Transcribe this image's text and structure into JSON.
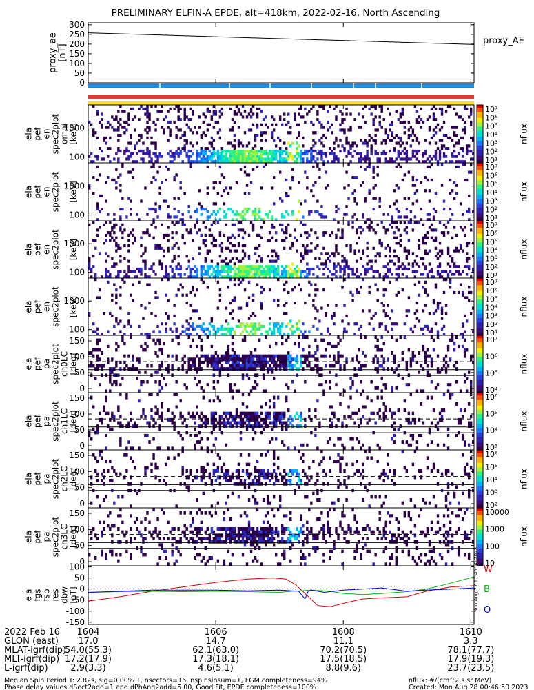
{
  "title": "PRELIMINARY ELFIN-A EPDE, alt=418km, 2022-02-16, North Ascending",
  "chart_data": {
    "type": "heatmap",
    "panels": [
      {
        "ylabel": [
          "proxy_ae",
          "[nT]"
        ],
        "yticks": [
          "300",
          "250",
          "200",
          "150",
          "100",
          "50",
          "0"
        ],
        "ylim": [
          0,
          310
        ],
        "legend": "proxy_AE",
        "series": [
          {
            "name": "proxy_AE",
            "x": [
              1604,
              1610.05
            ],
            "y": [
              258,
              198
            ]
          }
        ]
      },
      {
        "ylabel": [
          "ela",
          "pef",
          "en",
          "spec2plot",
          "omni",
          "[keV]"
        ],
        "yticks": [
          "1000",
          "100"
        ],
        "cbar": "nflux",
        "cbar_ticks": [
          "10⁷",
          "10⁶",
          "10⁵",
          "10⁴",
          "10³",
          "10²",
          "10¹"
        ]
      },
      {
        "ylabel": [
          "ela",
          "pef",
          "en",
          "spec2plot",
          "",
          "[keV]"
        ],
        "yticks": [
          "1000",
          "100"
        ],
        "cbar": "nflux",
        "cbar_ticks": [
          "10⁷",
          "10⁶",
          "10⁵",
          "10⁴",
          "10³",
          "10²",
          "10¹"
        ]
      },
      {
        "ylabel": [
          "ela",
          "pef",
          "en",
          "spec2plot",
          "",
          "[keV]"
        ],
        "yticks": [
          "1000",
          "100"
        ],
        "cbar": "nflux",
        "cbar_ticks": [
          "10⁷",
          "10⁶",
          "10⁵",
          "10⁴",
          "10³",
          "10²",
          "10¹"
        ]
      },
      {
        "ylabel": [
          "ela",
          "pef",
          "en",
          "spec2plot",
          "",
          "[keV]"
        ],
        "yticks": [
          "1000",
          "100"
        ],
        "cbar": "nflux",
        "cbar_ticks": [
          "10⁷",
          "10⁶",
          "10⁵",
          "10⁴",
          "10³",
          "10²",
          "10¹"
        ]
      },
      {
        "ylabel": [
          "ela",
          "pef",
          "pa",
          "spec2plot",
          "ch0LC",
          "[deg]"
        ],
        "yticks": [
          "150",
          "100",
          "50",
          "0"
        ],
        "cbar": "nflux",
        "cbar_ticks": [
          "10⁷",
          "10⁶",
          "10⁵",
          "10⁴"
        ]
      },
      {
        "ylabel": [
          "ela",
          "pef",
          "pa",
          "spec2plot",
          "ch1LC",
          "[deg]"
        ],
        "yticks": [
          "150",
          "100",
          "50",
          "0"
        ],
        "cbar": "nflux",
        "cbar_ticks": [
          "10⁶",
          "10⁵",
          "10⁴",
          "10³"
        ]
      },
      {
        "ylabel": [
          "ela",
          "pef",
          "pa",
          "spec2plot",
          "ch2LC",
          "[deg]"
        ],
        "yticks": [
          "150",
          "100",
          "50",
          "0"
        ],
        "cbar": "nflux",
        "cbar_ticks": [
          "10⁶",
          "10⁵",
          "10⁴",
          "10³",
          "10²"
        ]
      },
      {
        "ylabel": [
          "ela",
          "pef",
          "pa",
          "spec2plot",
          "ch3LC",
          "[deg]"
        ],
        "yticks": [
          "150",
          "100",
          "50",
          "0"
        ],
        "cbar": "nflux",
        "cbar_ticks": [
          "10000",
          "1000",
          "100",
          "10"
        ]
      },
      {
        "ylabel": [
          "ela",
          "fgs",
          "fsp",
          "res",
          "dbw",
          "[nT]"
        ],
        "yticks": [
          "100",
          "50",
          "0",
          "-50",
          "-100",
          "-150"
        ],
        "ylim": [
          -160,
          105
        ],
        "legend": [
          "W",
          "B",
          "O"
        ],
        "series": [
          {
            "name": "W",
            "color": "#dd0000",
            "x": [
              1604,
              1604.5,
              1605,
              1605.5,
              1606,
              1606.5,
              1606.9,
              1607.1,
              1607.25,
              1607.4,
              1607.6,
              1607.8,
              1608,
              1608.3,
              1608.6,
              1609,
              1609.3,
              1609.7,
              1610.05
            ],
            "y": [
              -55,
              -35,
              -10,
              10,
              30,
              45,
              50,
              45,
              20,
              -20,
              -75,
              -80,
              -65,
              -45,
              -40,
              -35,
              -10,
              10,
              15
            ]
          },
          {
            "name": "B",
            "color": "#00bb00",
            "x": [
              1604,
              1604.5,
              1605,
              1605.5,
              1606,
              1606.5,
              1607,
              1607.2,
              1607.5,
              1607.8,
              1608,
              1608.3,
              1608.6,
              1609,
              1609.3,
              1609.6,
              1610.05
            ],
            "y": [
              -15,
              -12,
              -10,
              -12,
              -10,
              -12,
              -15,
              -10,
              -5,
              -10,
              -20,
              -25,
              -20,
              -12,
              0,
              20,
              55
            ]
          },
          {
            "name": "O",
            "color": "#0000dd",
            "x": [
              1604,
              1604.5,
              1605,
              1605.5,
              1606,
              1606.5,
              1607,
              1607.3,
              1607.4,
              1607.45,
              1607.5,
              1607.7,
              1608,
              1608.3,
              1608.6,
              1609,
              1609.3,
              1609.7,
              1610.05
            ],
            "y": [
              -15,
              -10,
              -5,
              -5,
              -5,
              -8,
              -5,
              -10,
              -45,
              -10,
              -5,
              -15,
              -5,
              0,
              5,
              -10,
              -5,
              0,
              5
            ]
          }
        ]
      }
    ],
    "x_ticks": [
      1604,
      1606,
      1608,
      1610
    ],
    "xlim": [
      1604,
      1610.05
    ],
    "created_side": "Sun Aug 27 17:46:50 2023",
    "orbit_rows": [
      {
        "label": "2022 Feb 16",
        "values": [
          "1604",
          "1606",
          "1608",
          "1610"
        ]
      },
      {
        "label": "GLON (east)",
        "values": [
          "17.0",
          "14.7",
          "11.1",
          "3.3"
        ]
      },
      {
        "label": "MLAT-igrf(dip)",
        "values": [
          "54.0(55.3)",
          "62.1(63.0)",
          "70.2(70.5)",
          "78.1(77.7)"
        ]
      },
      {
        "label": "MLT-igrf(dip)",
        "values": [
          "17.2(17.9)",
          "17.3(18.1)",
          "17.5(18.5)",
          "17.9(19.3)"
        ]
      },
      {
        "label": "L-igrf(dip)",
        "values": [
          "2.9(3.3)",
          "4.6(5.1)",
          "8.8(9.6)",
          "23.7(23.5)"
        ]
      }
    ]
  },
  "footer": {
    "line1_left": "Median Spin Period T: 2.82s, sig=0.00% T, nsectors=16, nspinsinsum=1, FGM completeness=94%",
    "line2_left": "Phase delay values dSect2add=1 and dPhAng2add=5.00, Good Fit, EPDE completeness=100%",
    "line1_right": "nflux: #/(cm^2 s sr MeV)",
    "line2_right": "Created: Mon Aug 28 00:46:50 2023"
  }
}
